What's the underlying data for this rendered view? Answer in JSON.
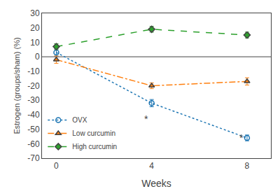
{
  "chart_data": {
    "type": "line",
    "x": [
      0,
      4,
      8
    ],
    "series": [
      {
        "name": "OVX",
        "values": [
          3,
          -32,
          -56
        ],
        "errors": [
          2.5,
          2.5,
          2
        ],
        "marker": "open_circle",
        "line_style": "dotted"
      },
      {
        "name": "Low curcumin",
        "values": [
          -2,
          -20,
          -17
        ],
        "errors": [
          2.5,
          2,
          2.5
        ],
        "marker": "triangle",
        "line_style": "dashdot"
      },
      {
        "name": "High curcumin",
        "values": [
          7,
          19,
          15
        ],
        "errors": [
          2,
          2,
          2
        ],
        "marker": "diamond",
        "line_style": "dashed"
      }
    ],
    "xlabel": "Weeks",
    "ylabel": "Estrogen (groups/sham) (%)",
    "xlim": [
      -0.6,
      9.0
    ],
    "xticks": [
      0,
      4,
      8
    ],
    "ylim": [
      -70,
      30
    ],
    "yticks": [
      -70,
      -60,
      -50,
      -40,
      -30,
      -20,
      -10,
      0,
      10,
      20,
      30
    ],
    "reference_line": {
      "y": 0
    },
    "annotations": [
      {
        "text": "*",
        "x": 4,
        "y": -38
      },
      {
        "text": "*",
        "x": 8,
        "y": -51
      }
    ],
    "legend": "lower left",
    "grid": false
  }
}
